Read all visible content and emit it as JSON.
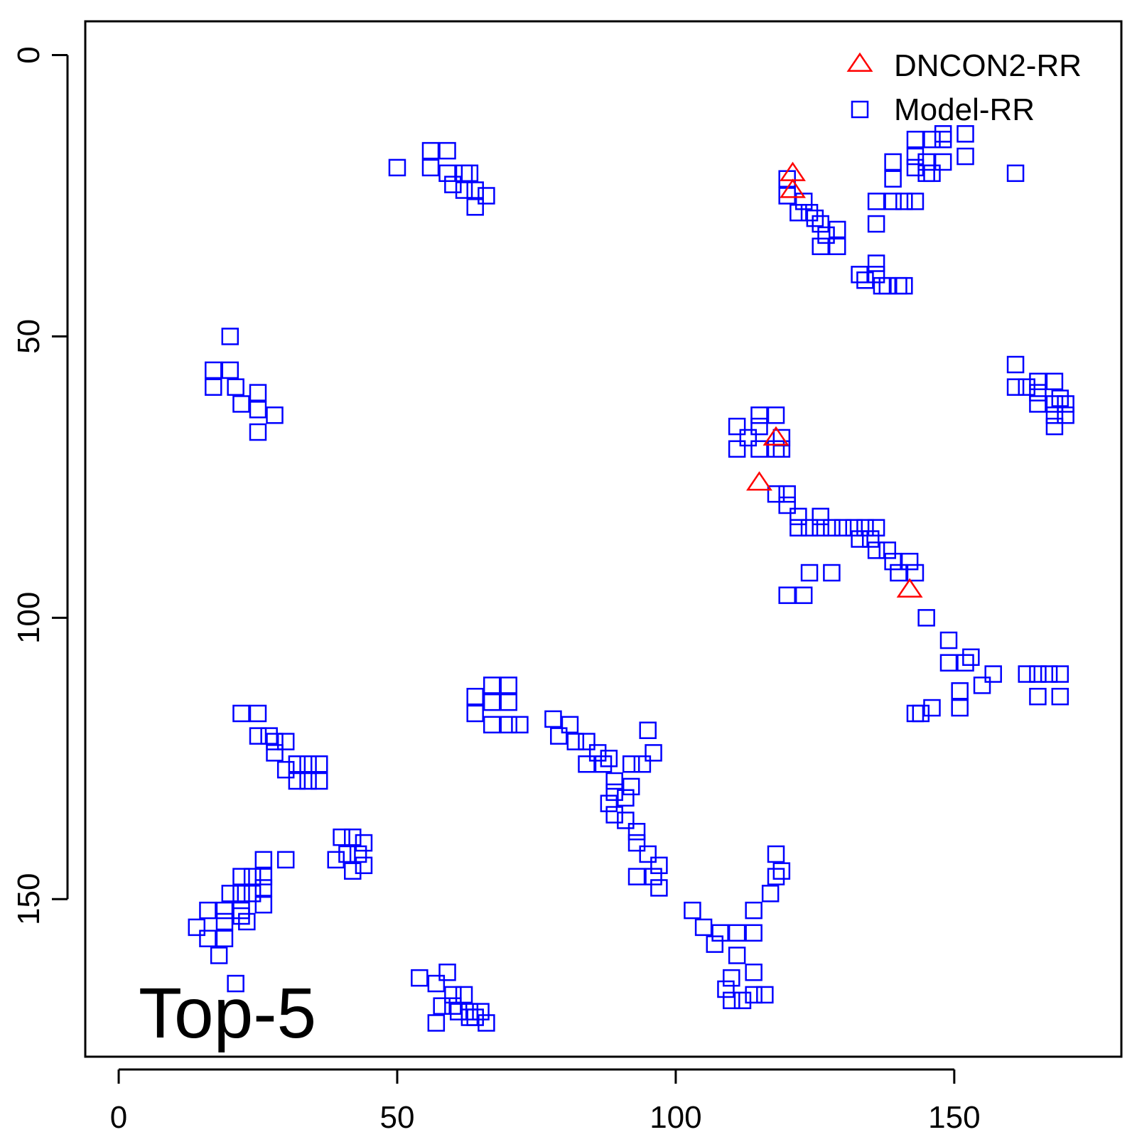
{
  "chart_data": {
    "type": "scatter",
    "annotation": "Top-5",
    "xlabel": "",
    "ylabel": "",
    "xlim": [
      -6,
      180
    ],
    "ylim": [
      -6,
      178
    ],
    "y_reversed": true,
    "x_ticks": [
      "0",
      "50",
      "100",
      "150"
    ],
    "y_ticks": [
      "0",
      "50",
      "100",
      "150"
    ],
    "grid": false,
    "legend_position": "top-right",
    "series": [
      {
        "name": "DNCON2-RR",
        "marker": "triangle",
        "color": "#ff0000",
        "points": [
          [
            121,
            21
          ],
          [
            121,
            24
          ],
          [
            118,
            68
          ],
          [
            115,
            76
          ],
          [
            142,
            95
          ]
        ]
      },
      {
        "name": "Model-RR",
        "marker": "square",
        "color": "#0000ff",
        "points": [
          [
            50,
            20
          ],
          [
            56,
            17
          ],
          [
            59,
            17
          ],
          [
            56,
            20
          ],
          [
            59,
            21
          ],
          [
            62,
            21
          ],
          [
            63,
            21
          ],
          [
            60,
            23
          ],
          [
            62,
            24
          ],
          [
            64,
            24
          ],
          [
            66,
            25
          ],
          [
            64,
            27
          ],
          [
            20,
            50
          ],
          [
            17,
            56
          ],
          [
            20,
            56
          ],
          [
            17,
            59
          ],
          [
            21,
            59
          ],
          [
            25,
            60
          ],
          [
            22,
            62
          ],
          [
            25,
            63
          ],
          [
            28,
            64
          ],
          [
            25,
            67
          ],
          [
            120,
            22
          ],
          [
            120,
            25
          ],
          [
            123,
            26
          ],
          [
            122,
            28
          ],
          [
            124,
            28
          ],
          [
            125,
            29
          ],
          [
            126,
            30
          ],
          [
            127,
            32
          ],
          [
            129,
            31
          ],
          [
            126,
            34
          ],
          [
            129,
            34
          ],
          [
            136,
            26
          ],
          [
            139,
            26
          ],
          [
            141,
            26
          ],
          [
            143,
            26
          ],
          [
            136,
            30
          ],
          [
            139,
            22
          ],
          [
            139,
            19
          ],
          [
            143,
            20
          ],
          [
            145,
            21
          ],
          [
            146,
            21
          ],
          [
            143,
            18
          ],
          [
            145,
            19
          ],
          [
            148,
            19
          ],
          [
            143,
            15
          ],
          [
            146,
            15
          ],
          [
            148,
            15
          ],
          [
            148,
            14
          ],
          [
            152,
            14
          ],
          [
            152,
            18
          ],
          [
            161,
            21
          ],
          [
            133,
            39
          ],
          [
            136,
            39
          ],
          [
            134,
            40
          ],
          [
            136,
            37
          ],
          [
            137,
            41
          ],
          [
            138,
            41
          ],
          [
            140,
            41
          ],
          [
            141,
            41
          ],
          [
            161,
            55
          ],
          [
            161,
            59
          ],
          [
            163,
            59
          ],
          [
            165,
            58
          ],
          [
            168,
            58
          ],
          [
            165,
            60
          ],
          [
            165,
            62
          ],
          [
            168,
            62
          ],
          [
            168,
            64
          ],
          [
            169,
            61
          ],
          [
            170,
            62
          ],
          [
            170,
            64
          ],
          [
            168,
            66
          ],
          [
            111,
            66
          ],
          [
            113,
            68
          ],
          [
            115,
            64
          ],
          [
            118,
            64
          ],
          [
            115,
            66
          ],
          [
            115,
            70
          ],
          [
            118,
            70
          ],
          [
            119,
            68
          ],
          [
            119,
            70
          ],
          [
            111,
            70
          ],
          [
            118,
            78
          ],
          [
            120,
            78
          ],
          [
            120,
            80
          ],
          [
            122,
            82
          ],
          [
            122,
            84
          ],
          [
            124,
            84
          ],
          [
            126,
            84
          ],
          [
            126,
            82
          ],
          [
            128,
            84
          ],
          [
            130,
            84
          ],
          [
            132,
            84
          ],
          [
            133,
            86
          ],
          [
            134,
            84
          ],
          [
            135,
            86
          ],
          [
            136,
            84
          ],
          [
            136,
            88
          ],
          [
            138,
            88
          ],
          [
            139,
            90
          ],
          [
            142,
            90
          ],
          [
            143,
            92
          ],
          [
            140,
            92
          ],
          [
            124,
            92
          ],
          [
            128,
            92
          ],
          [
            120,
            96
          ],
          [
            123,
            96
          ],
          [
            145,
            100
          ],
          [
            149,
            104
          ],
          [
            149,
            108
          ],
          [
            152,
            108
          ],
          [
            153,
            107
          ],
          [
            157,
            110
          ],
          [
            163,
            110
          ],
          [
            165,
            110
          ],
          [
            167,
            110
          ],
          [
            169,
            110
          ],
          [
            165,
            114
          ],
          [
            169,
            114
          ],
          [
            155,
            112
          ],
          [
            151,
            113
          ],
          [
            151,
            116
          ],
          [
            146,
            116
          ],
          [
            144,
            117
          ],
          [
            143,
            117
          ],
          [
            64,
            114
          ],
          [
            67,
            112
          ],
          [
            70,
            112
          ],
          [
            64,
            117
          ],
          [
            67,
            115
          ],
          [
            70,
            115
          ],
          [
            67,
            119
          ],
          [
            70,
            119
          ],
          [
            72,
            119
          ],
          [
            22,
            117
          ],
          [
            25,
            117
          ],
          [
            25,
            121
          ],
          [
            27,
            121
          ],
          [
            28,
            122
          ],
          [
            30,
            122
          ],
          [
            28,
            124
          ],
          [
            32,
            126
          ],
          [
            34,
            126
          ],
          [
            36,
            126
          ],
          [
            30,
            127
          ],
          [
            32,
            129
          ],
          [
            34,
            129
          ],
          [
            36,
            129
          ],
          [
            40,
            139
          ],
          [
            42,
            139
          ],
          [
            41,
            142
          ],
          [
            43,
            142
          ],
          [
            44,
            144
          ],
          [
            39,
            143
          ],
          [
            44,
            140
          ],
          [
            42,
            145
          ],
          [
            26,
            143
          ],
          [
            30,
            143
          ],
          [
            26,
            146
          ],
          [
            26,
            148
          ],
          [
            26,
            151
          ],
          [
            22,
            146
          ],
          [
            24,
            146
          ],
          [
            22,
            149
          ],
          [
            24,
            149
          ],
          [
            22,
            152
          ],
          [
            20,
            149
          ],
          [
            16,
            152
          ],
          [
            19,
            152
          ],
          [
            14,
            155
          ],
          [
            16,
            157
          ],
          [
            19,
            154
          ],
          [
            19,
            157
          ],
          [
            18,
            160
          ],
          [
            21,
            165
          ],
          [
            22,
            153
          ],
          [
            23,
            154
          ],
          [
            54,
            164
          ],
          [
            59,
            163
          ],
          [
            57,
            165
          ],
          [
            60,
            167
          ],
          [
            62,
            167
          ],
          [
            58,
            169
          ],
          [
            60,
            169
          ],
          [
            61,
            170
          ],
          [
            63,
            170
          ],
          [
            65,
            170
          ],
          [
            64,
            171
          ],
          [
            66,
            172
          ],
          [
            63,
            171
          ],
          [
            57,
            172
          ],
          [
            78,
            118
          ],
          [
            81,
            119
          ],
          [
            79,
            121
          ],
          [
            82,
            122
          ],
          [
            84,
            122
          ],
          [
            86,
            124
          ],
          [
            88,
            125
          ],
          [
            84,
            126
          ],
          [
            87,
            126
          ],
          [
            89,
            129
          ],
          [
            89,
            131
          ],
          [
            91,
            132
          ],
          [
            88,
            133
          ],
          [
            89,
            135
          ],
          [
            91,
            136
          ],
          [
            93,
            138
          ],
          [
            93,
            140
          ],
          [
            95,
            142
          ],
          [
            97,
            144
          ],
          [
            93,
            146
          ],
          [
            96,
            146
          ],
          [
            97,
            148
          ],
          [
            103,
            152
          ],
          [
            105,
            155
          ],
          [
            108,
            156
          ],
          [
            111,
            156
          ],
          [
            107,
            158
          ],
          [
            111,
            160
          ],
          [
            110,
            164
          ],
          [
            109,
            166
          ],
          [
            110,
            168
          ],
          [
            114,
            156
          ],
          [
            114,
            152
          ],
          [
            118,
            146
          ],
          [
            118,
            142
          ],
          [
            117,
            149
          ],
          [
            119,
            145
          ],
          [
            114,
            163
          ],
          [
            114,
            167
          ],
          [
            116,
            167
          ],
          [
            112,
            168
          ],
          [
            92,
            126
          ],
          [
            94,
            126
          ],
          [
            95,
            120
          ],
          [
            96,
            124
          ],
          [
            92,
            130
          ]
        ]
      }
    ]
  }
}
